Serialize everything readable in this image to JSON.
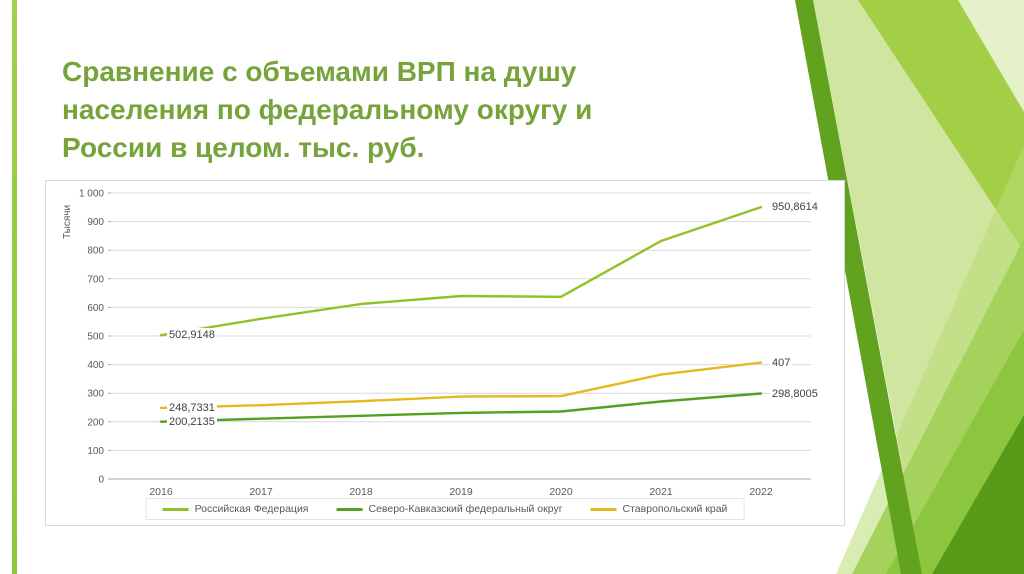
{
  "slide": {
    "title": "Сравнение с объемами ВРП на душу населения по федеральному округу и России в целом. тыс. руб."
  },
  "theme": {
    "title_color": "#76a43b",
    "accent_green": "#8cc63f"
  },
  "chart_data": {
    "type": "line",
    "title": "",
    "ylabel": "Тысячи",
    "xlabel": "",
    "categories": [
      "2016",
      "2017",
      "2018",
      "2019",
      "2020",
      "2021",
      "2022"
    ],
    "ylim": [
      0,
      1000
    ],
    "ytick_step": 100,
    "ytick_labels": [
      "0",
      "100",
      "200",
      "300",
      "400",
      "500",
      "600",
      "700",
      "800",
      "900",
      "1 000"
    ],
    "grid": true,
    "legend_position": "bottom",
    "series": [
      {
        "name": "Российская Федерация",
        "color": "#90C226",
        "values": [
          502.9148,
          560,
          612,
          640,
          637,
          832,
          950.8614
        ],
        "label_start": "502,9148",
        "label_end": "950,8614"
      },
      {
        "name": "Северо-Кавказский федеральный округ",
        "color": "#54A021",
        "values": [
          200.2135,
          211,
          221,
          231,
          236,
          271,
          298.8005
        ],
        "label_start": "200,2135",
        "label_end": "298,8005"
      },
      {
        "name": "Ставропольский край",
        "color": "#E6B91E",
        "values": [
          248.7331,
          258,
          272,
          288,
          290,
          365,
          407
        ],
        "label_start": "248,7331",
        "label_end": "407"
      }
    ]
  }
}
